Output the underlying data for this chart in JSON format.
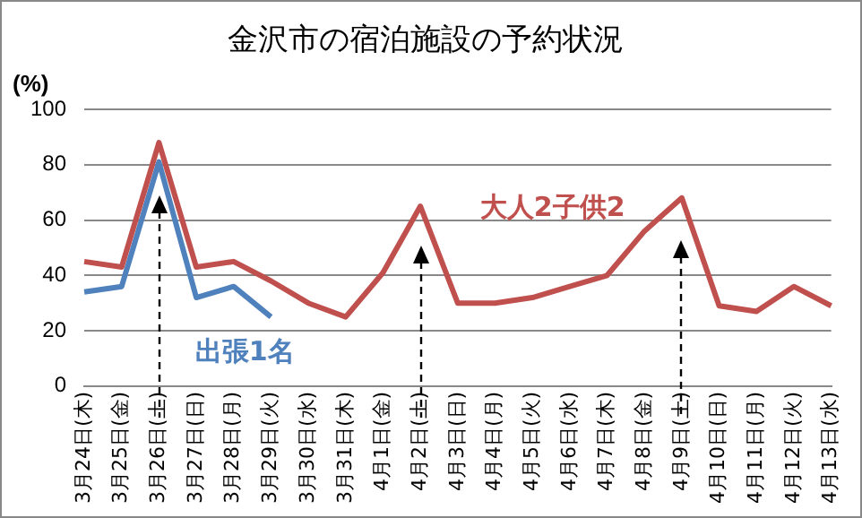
{
  "chart_data": {
    "type": "line",
    "title": "金沢市の宿泊施設の予約状況",
    "ylabel": "(%)",
    "categories": [
      "3月24日(木)",
      "3月25日(金)",
      "3月26日(土)",
      "3月27日(日)",
      "3月28日(月)",
      "3月29日(火)",
      "3月30日(水)",
      "3月31日(木)",
      "4月1日(金)",
      "4月2日(土)",
      "4月3日(日)",
      "4月4日(月)",
      "4月5日(火)",
      "4月6日(水)",
      "4月7日(木)",
      "4月8日(金)",
      "4月9日(土)",
      "4月10日(日)",
      "4月11日(月)",
      "4月12日(火)",
      "4月13日(水)"
    ],
    "series": [
      {
        "name": "大人2子供2",
        "color": "#c0504d",
        "values": [
          45,
          43,
          88,
          43,
          45,
          38,
          30,
          25,
          41,
          65,
          30,
          30,
          32,
          36,
          40,
          56,
          68,
          29,
          27,
          36,
          29
        ]
      },
      {
        "name": "出張1名",
        "color": "#4f81bd",
        "values": [
          34,
          36,
          81,
          32,
          36,
          25,
          null,
          null,
          null,
          null,
          null,
          null,
          null,
          null,
          null,
          null,
          null,
          null,
          null,
          null,
          null
        ]
      }
    ],
    "ylim": [
      0,
      100
    ],
    "yticks": [
      0,
      20,
      40,
      60,
      80,
      100
    ],
    "grid": "y",
    "legend": false,
    "marker": "none",
    "line_style": "solid"
  }
}
